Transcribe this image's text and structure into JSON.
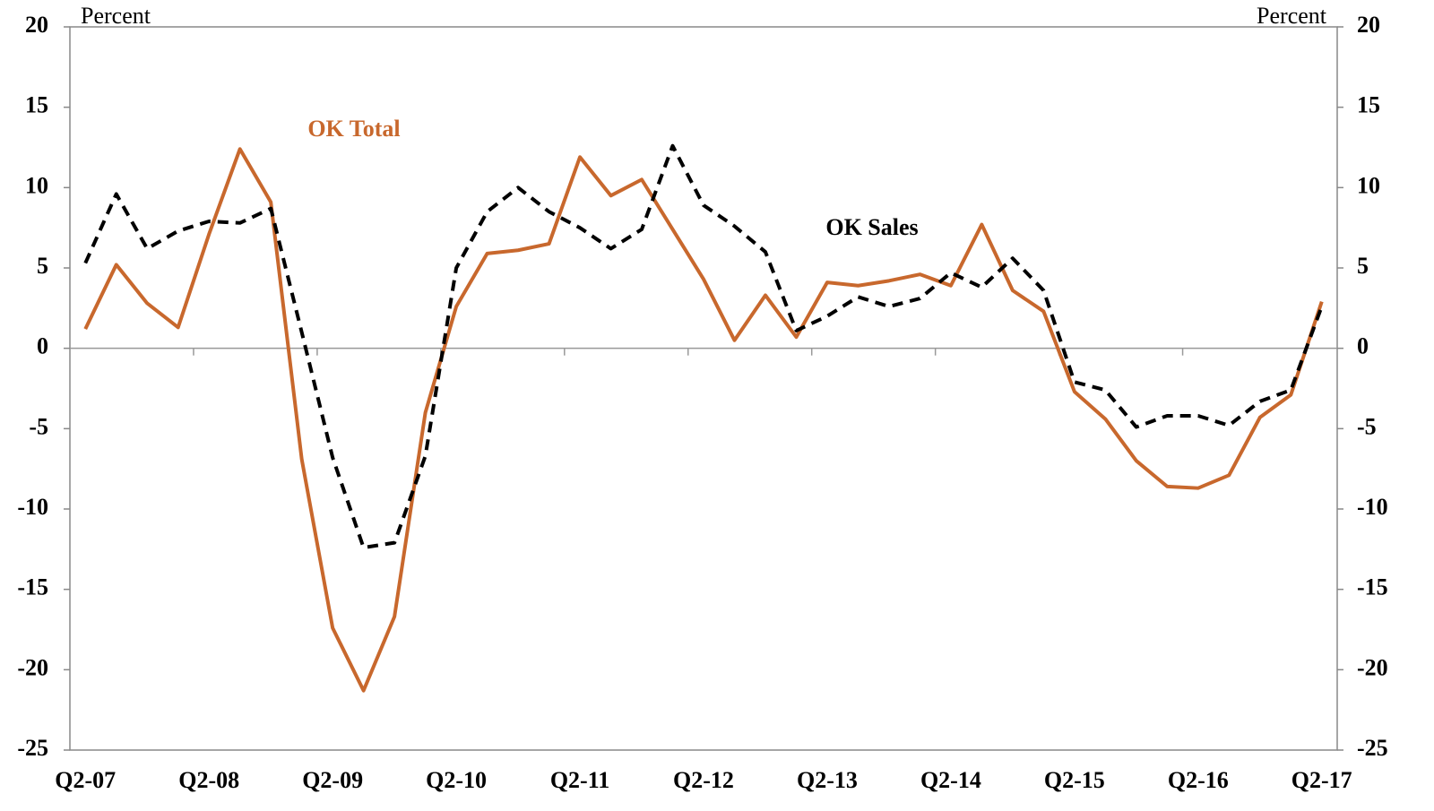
{
  "chart_data": {
    "type": "line",
    "y_label": "Percent",
    "y2_label": "Percent",
    "categories": [
      "Q2-07",
      null,
      null,
      null,
      "Q2-08",
      null,
      null,
      null,
      "Q2-09",
      null,
      null,
      null,
      "Q2-10",
      null,
      null,
      null,
      "Q2-11",
      null,
      null,
      null,
      "Q2-12",
      null,
      null,
      null,
      "Q2-13",
      null,
      null,
      null,
      "Q2-14",
      null,
      null,
      null,
      "Q2-15",
      null,
      null,
      null,
      "Q2-16",
      null,
      null,
      null,
      "Q2-17"
    ],
    "series": [
      {
        "name": "OK Total",
        "color": "#c8682d",
        "dashed": false,
        "values": [
          1.2,
          5.2,
          2.8,
          1.3,
          7.1,
          12.4,
          9.1,
          -6.9,
          -17.4,
          -21.3,
          -16.7,
          -4.0,
          2.6,
          5.9,
          6.1,
          6.5,
          11.9,
          9.5,
          10.5,
          7.4,
          4.3,
          0.5,
          3.3,
          0.7,
          4.1,
          3.9,
          4.2,
          4.6,
          3.9,
          7.7,
          3.6,
          2.3,
          -2.7,
          -4.4,
          -7.0,
          -8.6,
          -8.7,
          -7.9,
          -4.3,
          -2.9,
          2.9
        ]
      },
      {
        "name": "OK Sales",
        "color": "#000000",
        "dashed": true,
        "values": [
          5.3,
          9.6,
          6.2,
          7.3,
          7.9,
          7.8,
          8.7,
          1.0,
          -6.8,
          -12.4,
          -12.1,
          -6.7,
          5.0,
          8.5,
          10.0,
          8.5,
          7.5,
          6.2,
          7.4,
          12.6,
          8.9,
          7.6,
          6.0,
          1.1,
          2.0,
          3.2,
          2.6,
          3.1,
          4.7,
          3.8,
          5.6,
          3.6,
          -2.1,
          -2.6,
          -4.9,
          -4.2,
          -4.2,
          -4.8,
          -3.3,
          -2.6,
          2.6
        ]
      }
    ],
    "ylim": [
      -25,
      20
    ],
    "yticks": [
      -25,
      -20,
      -15,
      -10,
      -5,
      0,
      5,
      10,
      15,
      20
    ],
    "y2lim": [
      -25,
      20
    ],
    "y2ticks": [
      -25,
      -20,
      -15,
      -10,
      -5,
      0,
      5,
      10,
      15,
      20
    ],
    "grid": false
  }
}
